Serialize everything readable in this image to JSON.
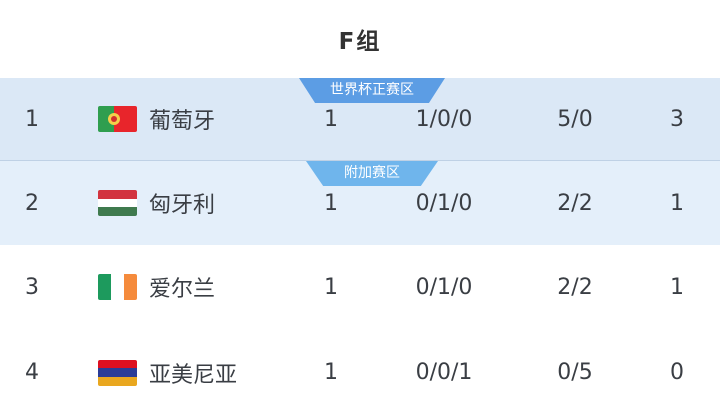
{
  "header": {
    "title": "F组"
  },
  "colors": {
    "row_world_cup_zone_bg": "#DBE8F6",
    "row_playoff_zone_bg": "#E4EFFA",
    "row_default_bg": "#FFFFFF",
    "world_cup_badge_bg": "#5C9DE4",
    "playoff_badge_bg": "#6FB5EC",
    "text": "#3A3E44"
  },
  "table": {
    "rows": [
      {
        "rank": "1",
        "team": "葡萄牙",
        "flag": {
          "name": "portugal-flag",
          "green": "#2F9E4F",
          "red": "#E8252B",
          "emblem_outer": "#F5CF4A",
          "emblem_inner": "#D12F2F"
        },
        "played": "1",
        "record": "1/0/0",
        "goals": "5/0",
        "points": "3",
        "zone": {
          "label": "世界杯正赛区",
          "color": "#5C9DE4"
        },
        "bg": "#DBE8F6"
      },
      {
        "rank": "2",
        "team": "匈牙利",
        "flag": {
          "name": "hungary-flag",
          "top": "#D2343F",
          "middle": "#FFFFFF",
          "bottom": "#3F7A4E"
        },
        "played": "1",
        "record": "0/1/0",
        "goals": "2/2",
        "points": "1",
        "zone": {
          "label": "附加赛区",
          "color": "#6FB5EC"
        },
        "bg": "#E4EFFA"
      },
      {
        "rank": "3",
        "team": "爱尔兰",
        "flag": {
          "name": "ireland-flag",
          "left": "#1D9A5D",
          "middle": "#FFFFFF",
          "right": "#F58B3C"
        },
        "played": "1",
        "record": "0/1/0",
        "goals": "2/2",
        "points": "1",
        "bg": "#FFFFFF"
      },
      {
        "rank": "4",
        "team": "亚美尼亚",
        "flag": {
          "name": "armenia-flag",
          "top": "#DE1021",
          "middle": "#2B3C97",
          "bottom": "#E9A71F"
        },
        "played": "1",
        "record": "0/0/1",
        "goals": "0/5",
        "points": "0",
        "bg": "#FFFFFF"
      }
    ]
  }
}
